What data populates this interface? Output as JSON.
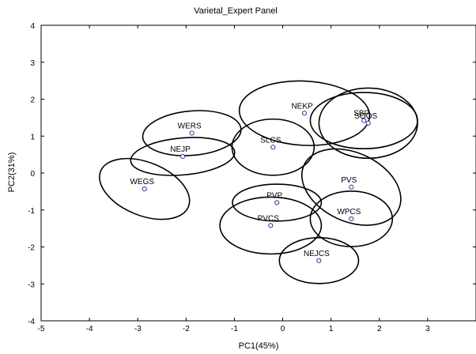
{
  "chart_data": {
    "type": "scatter",
    "title": "Varietal_Expert Panel",
    "xlabel": "PC1(45%)",
    "ylabel": "PC2(31%)",
    "xlim": [
      -5,
      4
    ],
    "ylim": [
      -4,
      4
    ],
    "xticks": [
      "-5",
      "-4",
      "-3",
      "-2",
      "-1",
      "0",
      "1",
      "2",
      "3"
    ],
    "xtick_values": [
      -5,
      -4,
      -3,
      -2,
      -1,
      0,
      1,
      2,
      3
    ],
    "yticks": [
      "-4",
      "-3",
      "-2",
      "-1",
      "0",
      "1",
      "2",
      "3",
      "4"
    ],
    "ytick_values": [
      -4,
      -3,
      -2,
      -1,
      0,
      1,
      2,
      3,
      4
    ],
    "grid": false,
    "legend": "none",
    "colors": {
      "point": "#3333aa",
      "ellipse": "#000000",
      "axis": "#000000"
    },
    "points": [
      {
        "label": "WERS",
        "x": -1.88,
        "y": 1.08,
        "ellipse": {
          "rx": 1.02,
          "ry": 0.6,
          "rotation_deg": 5
        }
      },
      {
        "label": "NEJP",
        "x": -2.07,
        "y": 0.45,
        "ellipse": {
          "rx": 1.08,
          "ry": 0.5,
          "rotation_deg": 5
        }
      },
      {
        "label": "WEGS",
        "x": -2.86,
        "y": -0.43,
        "ellipse": {
          "rx": 0.98,
          "ry": 0.72,
          "rotation_deg": -22
        }
      },
      {
        "label": "NEKP",
        "x": 0.45,
        "y": 1.62,
        "ellipse": {
          "rx": 1.35,
          "ry": 0.87,
          "rotation_deg": -3
        }
      },
      {
        "label": "SLCS",
        "x": -0.2,
        "y": 0.7,
        "ellipse": {
          "rx": 0.85,
          "ry": 0.76,
          "rotation_deg": 0
        }
      },
      {
        "label": "SBP",
        "x": 1.68,
        "y": 1.42,
        "ellipse": {
          "rx": 1.11,
          "ry": 0.76,
          "rotation_deg": 0
        }
      },
      {
        "label": "SOOS",
        "x": 1.77,
        "y": 1.35,
        "ellipse": {
          "rx": 1.02,
          "ry": 0.95,
          "rotation_deg": 0
        }
      },
      {
        "label": "PVS",
        "x": 1.42,
        "y": -0.38,
        "ellipse": {
          "rx": 1.08,
          "ry": 0.93,
          "rotation_deg": -25
        }
      },
      {
        "label": "WPCS",
        "x": 1.42,
        "y": -1.24,
        "ellipse": {
          "rx": 0.85,
          "ry": 0.75,
          "rotation_deg": 0
        }
      },
      {
        "label": "PVP",
        "x": -0.12,
        "y": -0.8,
        "ellipse": {
          "rx": 0.92,
          "ry": 0.5,
          "rotation_deg": 0
        }
      },
      {
        "label": "PVCS",
        "x": -0.25,
        "y": -1.42,
        "ellipse": {
          "rx": 1.05,
          "ry": 0.77,
          "rotation_deg": 0
        }
      },
      {
        "label": "NEJCS",
        "x": 0.75,
        "y": -2.37,
        "ellipse": {
          "rx": 0.82,
          "ry": 0.62,
          "rotation_deg": 0
        }
      }
    ]
  }
}
